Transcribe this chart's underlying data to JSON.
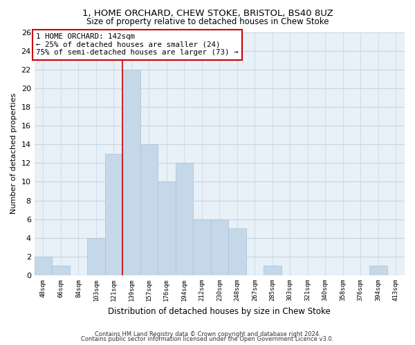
{
  "title": "1, HOME ORCHARD, CHEW STOKE, BRISTOL, BS40 8UZ",
  "subtitle": "Size of property relative to detached houses in Chew Stoke",
  "xlabel": "Distribution of detached houses by size in Chew Stoke",
  "ylabel": "Number of detached properties",
  "categories": [
    "48sqm",
    "66sqm",
    "84sqm",
    "103sqm",
    "121sqm",
    "139sqm",
    "157sqm",
    "176sqm",
    "194sqm",
    "212sqm",
    "230sqm",
    "248sqm",
    "267sqm",
    "285sqm",
    "303sqm",
    "321sqm",
    "340sqm",
    "358sqm",
    "376sqm",
    "394sqm",
    "413sqm"
  ],
  "values": [
    2,
    1,
    0,
    4,
    13,
    22,
    14,
    10,
    12,
    6,
    6,
    5,
    0,
    1,
    0,
    0,
    0,
    0,
    0,
    1,
    0
  ],
  "bar_color": "#c5d8ea",
  "bar_edge_color": "#a8c0d6",
  "vline_color": "#cc0000",
  "ylim": [
    0,
    26
  ],
  "yticks": [
    0,
    2,
    4,
    6,
    8,
    10,
    12,
    14,
    16,
    18,
    20,
    22,
    24,
    26
  ],
  "annotation_text": "1 HOME ORCHARD: 142sqm\n← 25% of detached houses are smaller (24)\n75% of semi-detached houses are larger (73) →",
  "annotation_box_color": "#ffffff",
  "annotation_box_edge": "#cc0000",
  "footnote1": "Contains HM Land Registry data © Crown copyright and database right 2024.",
  "footnote2": "Contains public sector information licensed under the Open Government Licence v3.0.",
  "background_color": "#ffffff",
  "plot_bg_color": "#e8f0f8",
  "grid_color": "#c8d4e0"
}
